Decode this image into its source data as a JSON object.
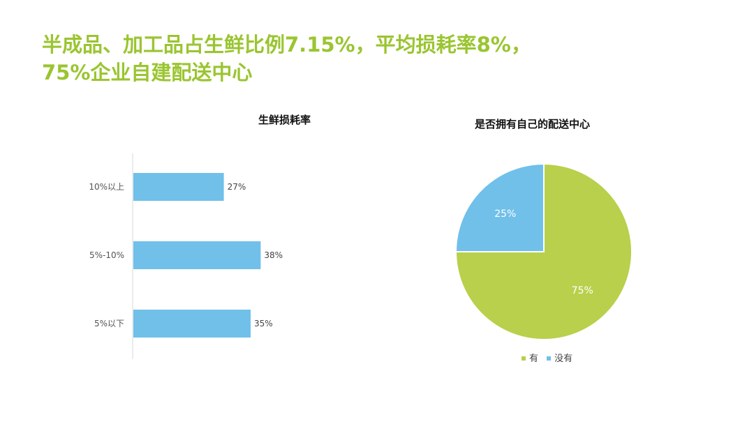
{
  "headline": {
    "line1": "半成品、加工品占生鲜比例7.15%，平均损耗率8%，",
    "line2": "75%企业自建配送中心"
  },
  "colors": {
    "headline": "#9ac530",
    "bar": "#70c0ea",
    "green": "#b8d04c",
    "blue": "#70c0ea"
  },
  "chart_data": [
    {
      "type": "bar",
      "orientation": "horizontal",
      "title": "生鲜损耗率",
      "categories": [
        "10%以上",
        "5%-10%",
        "5%以下"
      ],
      "values": [
        27,
        38,
        35
      ],
      "data_labels": [
        "27%",
        "38%",
        "35%"
      ],
      "unit": "%",
      "xlim": [
        0,
        100
      ],
      "grid": false,
      "legend": "none"
    },
    {
      "type": "pie",
      "title": "是否拥有自己的配送中心",
      "slices": [
        {
          "label": "有",
          "value": 75,
          "data_label": "75%",
          "color": "#b8d04c"
        },
        {
          "label": "没有",
          "value": 25,
          "data_label": "25%",
          "color": "#70c0ea"
        }
      ],
      "legend": "bottom"
    }
  ]
}
